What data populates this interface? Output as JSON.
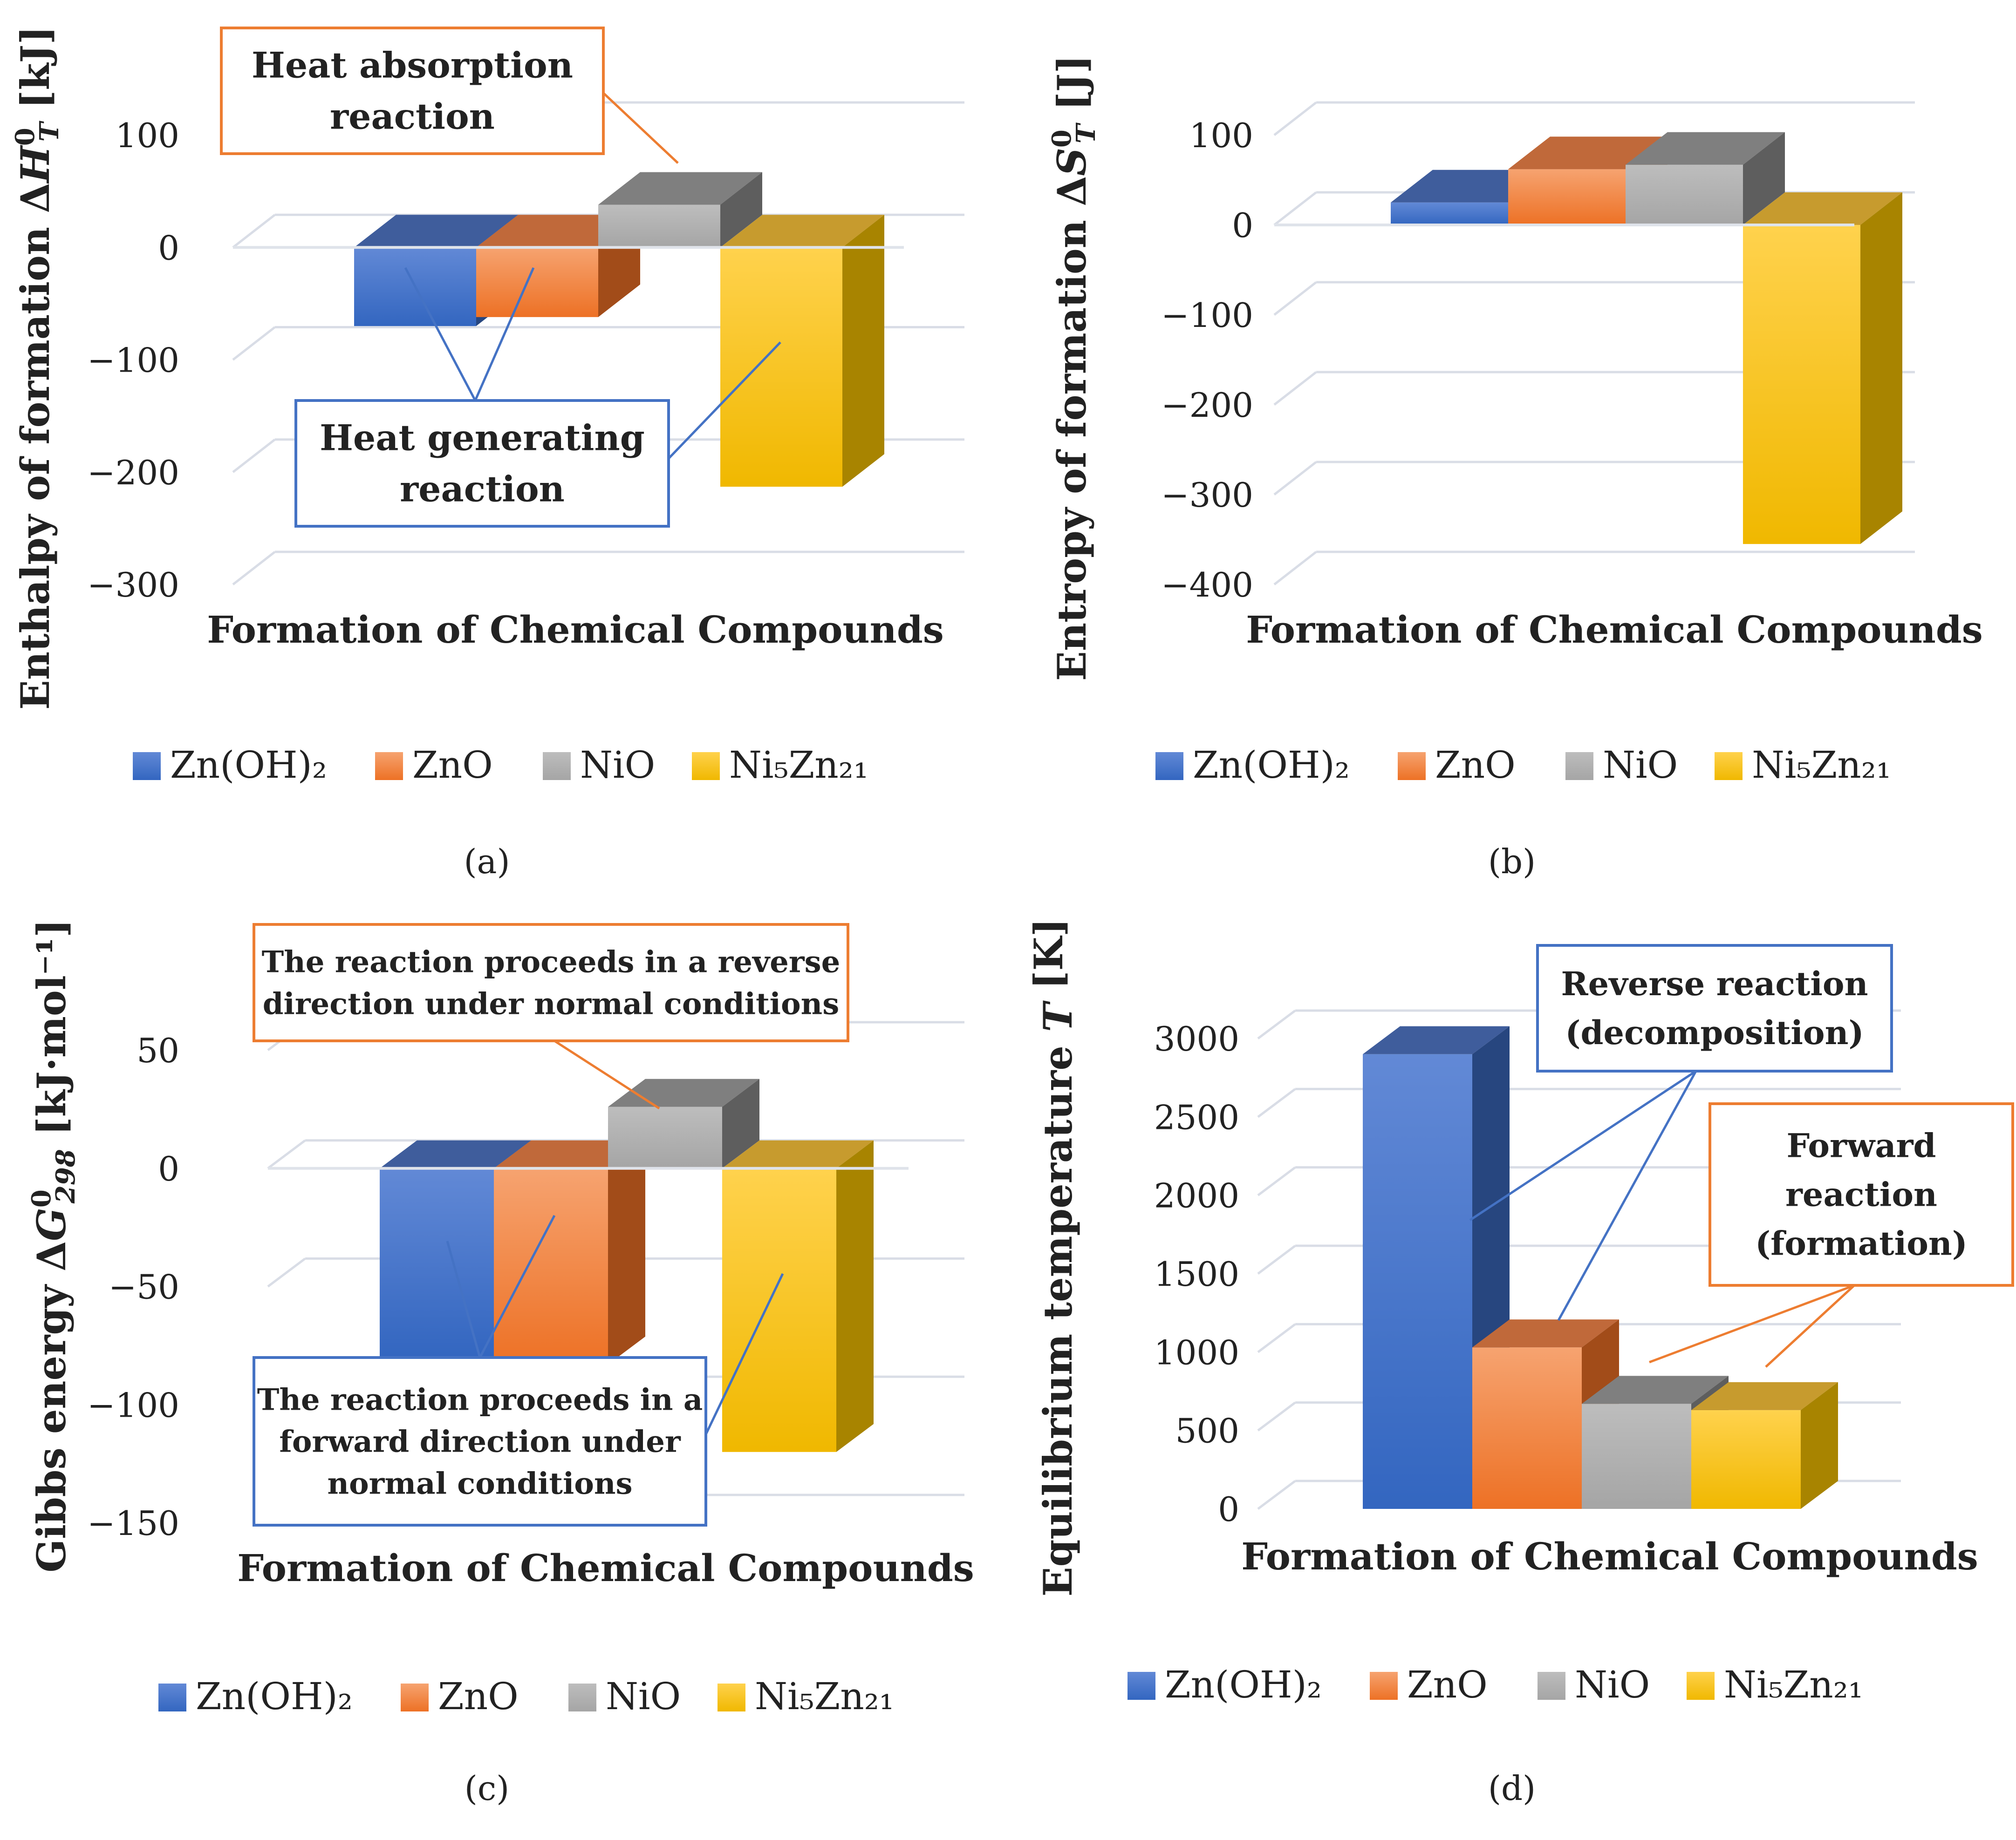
{
  "series_names": [
    "Zn(OH)₂",
    "ZnO",
    "NiO",
    "Ni₅Zn₂₁"
  ],
  "colors": {
    "Zn(OH)₂": {
      "front_top": "#6289d6",
      "front_bottom": "#3366c0",
      "side": "#27467f",
      "top": "#3f5d9c"
    },
    "ZnO": {
      "front_top": "#f6a370",
      "front_bottom": "#ed7125",
      "side": "#a24c19",
      "top": "#c0693a"
    },
    "NiO": {
      "front_top": "#bdbdbd",
      "front_bottom": "#a5a5a5",
      "side": "#5e5e5e",
      "top": "#7f7f7f"
    },
    "Ni₅Zn₂₁": {
      "front_top": "#ffd24d",
      "front_bottom": "#f0b800",
      "side": "#a88400",
      "top": "#c79b2e"
    },
    "annotation_orange": "#ed7d31",
    "annotation_blue": "#4472c4",
    "grid": "#d9dde6"
  },
  "chart_data": [
    {
      "type": "bar",
      "panel_label": "(a)",
      "title": "",
      "xlabel": "Formation of Chemical Compounds",
      "ylabel_parts": [
        "Enthalpy of formation Δ",
        "H",
        "0",
        "T",
        " [kJ]"
      ],
      "categories": [
        "Zn(OH)₂",
        "ZnO",
        "NiO",
        "Ni₅Zn₂₁"
      ],
      "values": [
        -70,
        -62,
        38,
        -213
      ],
      "ylim": [
        -300,
        120
      ],
      "yticks": [
        100,
        0,
        -100,
        -200,
        -300
      ],
      "ytick_labels": [
        "100",
        "0",
        "−100",
        "−200",
        "−300"
      ],
      "legend_position": "bottom",
      "annotations": [
        {
          "lines": [
            "Heat absorption",
            "reaction"
          ],
          "color": "orange"
        },
        {
          "lines": [
            "Heat generating",
            "reaction"
          ],
          "color": "blue"
        }
      ]
    },
    {
      "type": "bar",
      "panel_label": "(b)",
      "title": "",
      "xlabel": "Formation of Chemical Compounds",
      "ylabel_parts": [
        "Entropy of formation Δ",
        "S",
        "0",
        "T",
        " [J]"
      ],
      "categories": [
        "Zn(OH)₂",
        "ZnO",
        "NiO",
        "Ni₅Zn₂₁"
      ],
      "values": [
        25,
        62,
        67,
        -355
      ],
      "ylim": [
        -400,
        120
      ],
      "yticks": [
        100,
        0,
        -100,
        -200,
        -300,
        -400
      ],
      "ytick_labels": [
        "100",
        "0",
        "−100",
        "−200",
        "−300",
        "−400"
      ],
      "legend_position": "bottom",
      "annotations": []
    },
    {
      "type": "bar",
      "panel_label": "(c)",
      "title": "",
      "xlabel": "Formation of Chemical Compounds",
      "ylabel_parts": [
        "Gibbs energy Δ",
        "G",
        "0",
        "298",
        " [kJ·mol⁻¹]"
      ],
      "categories": [
        "Zn(OH)₂",
        "ZnO",
        "NiO",
        "Ni₅Zn₂₁"
      ],
      "values": [
        -80,
        -83,
        26,
        -120
      ],
      "ylim": [
        -150,
        70
      ],
      "yticks": [
        50,
        0,
        -50,
        -100,
        -150
      ],
      "ytick_labels": [
        "50",
        "0",
        "−50",
        "−100",
        "−150"
      ],
      "legend_position": "bottom",
      "annotations": [
        {
          "lines": [
            "The reaction proceeds in a reverse",
            "direction under normal conditions"
          ],
          "color": "orange"
        },
        {
          "lines": [
            "The reaction proceeds in a",
            "forward direction under",
            "normal conditions"
          ],
          "color": "blue"
        }
      ]
    },
    {
      "type": "bar",
      "panel_label": "(d)",
      "title": "",
      "xlabel": "Formation of Chemical Compounds",
      "ylabel_parts": [
        "Equilibrium temperature ",
        "T",
        "",
        "",
        " [K]"
      ],
      "categories": [
        "Zn(OH)₂",
        "ZnO",
        "NiO",
        "Ni₅Zn₂₁"
      ],
      "values": [
        2900,
        1030,
        670,
        630
      ],
      "ylim": [
        0,
        3100
      ],
      "yticks": [
        3000,
        2500,
        2000,
        1500,
        1000,
        500,
        0
      ],
      "ytick_labels": [
        "3000",
        "2500",
        "2000",
        "1500",
        "1000",
        "500",
        "0"
      ],
      "legend_position": "bottom",
      "annotations": [
        {
          "lines": [
            "Reverse reaction",
            "(decomposition)"
          ],
          "color": "blue"
        },
        {
          "lines": [
            "Forward",
            "reaction",
            "(formation)"
          ],
          "color": "orange"
        }
      ]
    }
  ]
}
